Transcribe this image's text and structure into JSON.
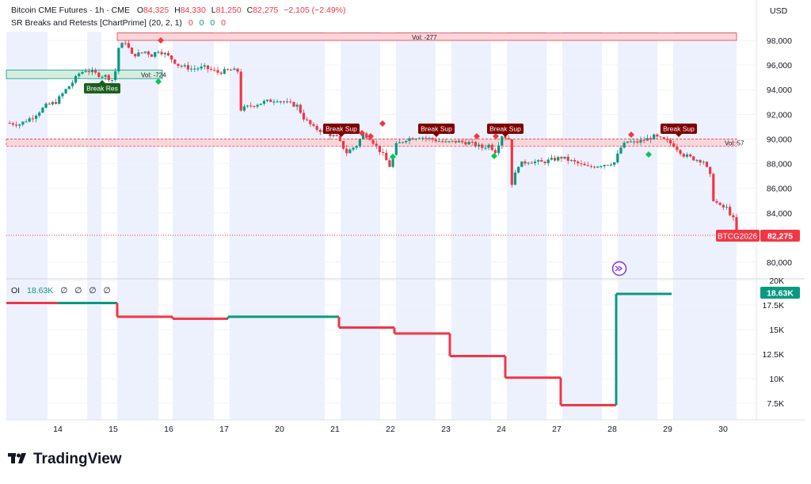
{
  "header": {
    "symbol": "Bitcoin CME Futures · 1h · CME",
    "open_label": "O",
    "open": "84,325",
    "high_label": "H",
    "high": "84,330",
    "low_label": "L",
    "low": "81,250",
    "close_label": "C",
    "close": "82,275",
    "change": "−2,105 (−2.49%)",
    "indicator": "SR Breaks and Retests [ChartPrime] (20, 2, 1)",
    "indicator_values": [
      "0",
      "0",
      "0",
      "0"
    ],
    "currency": "USD"
  },
  "oi": {
    "label": "OI",
    "value": "18.63K",
    "extras": [
      "∅",
      "∅",
      "∅",
      "∅"
    ],
    "badge": "18.63K"
  },
  "price_badge": {
    "symbol": "BTCG2026",
    "price": "82,275"
  },
  "brand": {
    "name": "TradingView"
  },
  "colors": {
    "up": "#089981",
    "down": "#f23645",
    "zone": "#f8d7da",
    "zone_border": "#f23645",
    "bg_shade": "#edf1fd"
  },
  "chart_data": [
    {
      "type": "candlestick",
      "title": "Bitcoin CME Futures",
      "ylabel": "USD",
      "ylim": [
        79500,
        100000
      ],
      "yticks": [
        80000,
        82000,
        84000,
        86000,
        88000,
        90000,
        92000,
        94000,
        96000,
        98000
      ],
      "ytick_labels": [
        "80,000",
        "82,000",
        "84,000",
        "86,000",
        "88,000",
        "90,000",
        "92,000",
        "94,000",
        "96,000",
        "98,000"
      ],
      "xticks": [
        "14",
        "15",
        "16",
        "17",
        "20",
        "21",
        "22",
        "23",
        "24",
        "27",
        "28",
        "29",
        "30"
      ],
      "price_path": [
        [
          0,
          91300
        ],
        [
          4,
          91200
        ],
        [
          8,
          91800
        ],
        [
          12,
          92700
        ],
        [
          15,
          93000
        ],
        [
          18,
          94000
        ],
        [
          20,
          94600
        ],
        [
          22,
          95300
        ],
        [
          24,
          95600
        ],
        [
          26,
          95400
        ],
        [
          28,
          95200
        ],
        [
          30,
          95100
        ],
        [
          32,
          94800
        ],
        [
          33,
          95500
        ],
        [
          34,
          97400
        ],
        [
          36,
          97900
        ],
        [
          38,
          96800
        ],
        [
          40,
          96900
        ],
        [
          42,
          97100
        ],
        [
          44,
          96800
        ],
        [
          46,
          97200
        ],
        [
          48,
          96900
        ],
        [
          50,
          96500
        ],
        [
          52,
          96000
        ],
        [
          56,
          95700
        ],
        [
          60,
          95800
        ],
        [
          64,
          95400
        ],
        [
          68,
          95600
        ],
        [
          70,
          95500
        ],
        [
          71,
          92400
        ],
        [
          74,
          92700
        ],
        [
          78,
          93000
        ],
        [
          82,
          93200
        ],
        [
          85,
          92900
        ],
        [
          88,
          92700
        ],
        [
          90,
          91700
        ],
        [
          93,
          90900
        ],
        [
          96,
          90600
        ],
        [
          100,
          90100
        ],
        [
          103,
          88900
        ],
        [
          106,
          89500
        ],
        [
          108,
          90400
        ],
        [
          110,
          90100
        ],
        [
          112,
          89400
        ],
        [
          114,
          88700
        ],
        [
          116,
          87800
        ],
        [
          118,
          89500
        ],
        [
          121,
          90000
        ],
        [
          125,
          90200
        ],
        [
          130,
          89900
        ],
        [
          133,
          89700
        ],
        [
          136,
          89800
        ],
        [
          140,
          89700
        ],
        [
          144,
          89300
        ],
        [
          146,
          89500
        ],
        [
          148,
          89000
        ],
        [
          150,
          90300
        ],
        [
          152,
          90000
        ],
        [
          153,
          86400
        ],
        [
          155,
          87900
        ],
        [
          158,
          88200
        ],
        [
          162,
          88100
        ],
        [
          165,
          88300
        ],
        [
          168,
          88500
        ],
        [
          172,
          88100
        ],
        [
          176,
          87700
        ],
        [
          180,
          87900
        ],
        [
          184,
          88100
        ],
        [
          186,
          89300
        ],
        [
          188,
          89800
        ],
        [
          190,
          89700
        ],
        [
          193,
          89900
        ],
        [
          196,
          90200
        ],
        [
          200,
          89800
        ],
        [
          202,
          89500
        ],
        [
          205,
          88700
        ],
        [
          208,
          88400
        ],
        [
          211,
          88200
        ],
        [
          213,
          87000
        ],
        [
          214,
          85100
        ],
        [
          216,
          84500
        ],
        [
          218,
          84400
        ],
        [
          220,
          83500
        ],
        [
          221,
          82275
        ]
      ],
      "ohlc_last": {
        "open": 84325,
        "high": 84330,
        "low": 81250,
        "close": 82275
      },
      "zones": [
        {
          "low": 98000,
          "high": 98600,
          "label": "Vol: -277"
        },
        {
          "low": 94900,
          "high": 95600,
          "label": "Vol: -724"
        },
        {
          "low": 89400,
          "high": 90000,
          "label": "Vol: 57"
        }
      ],
      "annotations": [
        "Break Res",
        "Break Sup",
        "Break Sup",
        "Break Sup",
        "Break Sup"
      ]
    },
    {
      "type": "step",
      "title": "OI",
      "ylim": [
        6000,
        20000
      ],
      "yticks": [
        7500,
        10000,
        12500,
        15000,
        17500,
        20000
      ],
      "ytick_labels": [
        "7.5K",
        "10K",
        "12.5K",
        "15K",
        "17.5K",
        "20K"
      ],
      "steps": [
        {
          "day": "14",
          "value": 17700,
          "dir": "down"
        },
        {
          "day": "15",
          "value": 17700,
          "dir": "up"
        },
        {
          "day": "16",
          "value": 16300,
          "dir": "down"
        },
        {
          "day": "17",
          "value": 16100,
          "dir": "down"
        },
        {
          "day": "21",
          "value": 16300,
          "dir": "up"
        },
        {
          "day": "22",
          "value": 15200,
          "dir": "down"
        },
        {
          "day": "23",
          "value": 14600,
          "dir": "down"
        },
        {
          "day": "24",
          "value": 12300,
          "dir": "down"
        },
        {
          "day": "27",
          "value": 10100,
          "dir": "down"
        },
        {
          "day": "28",
          "value": 7300,
          "dir": "down"
        },
        {
          "day": "29",
          "value": 18630,
          "dir": "up"
        }
      ]
    }
  ]
}
